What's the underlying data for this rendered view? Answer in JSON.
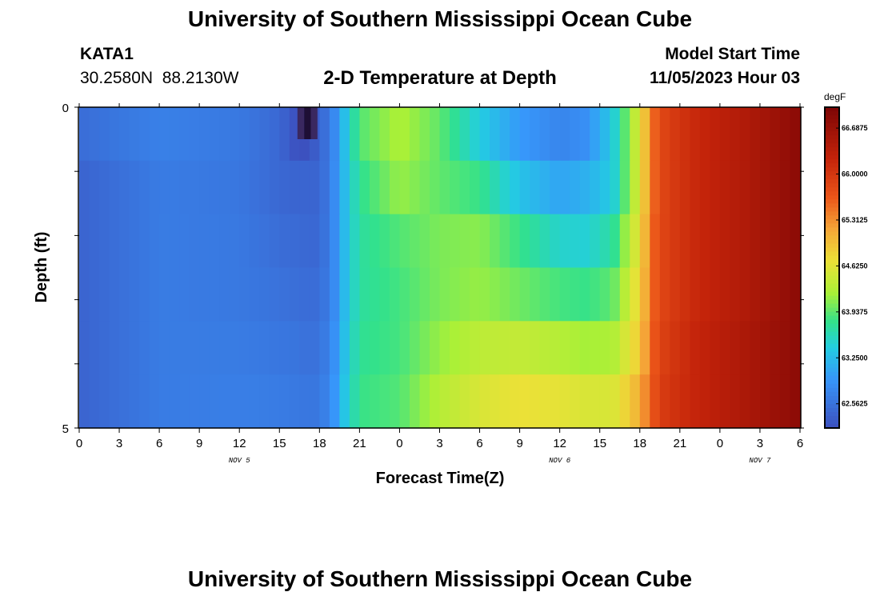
{
  "header": {
    "title": "University of Southern Mississippi Ocean Cube",
    "station_id": "KATA1",
    "station_coords": "30.2580N  88.2130W",
    "chart_title": "2-D Temperature at Depth",
    "model_start_label": "Model Start Time",
    "model_start_value": "11/05/2023 Hour 03"
  },
  "footer": {
    "title": "University of Southern Mississippi Ocean Cube"
  },
  "chart_data": {
    "type": "heatmap",
    "title": "2-D Temperature at Depth",
    "xlabel": "Forecast Time(Z)",
    "ylabel": "Depth (ft)",
    "x_ticks": [
      "0",
      "3",
      "6",
      "9",
      "12",
      "15",
      "18",
      "21",
      "0",
      "3",
      "6",
      "9",
      "12",
      "15",
      "18",
      "21",
      "0",
      "3",
      "6"
    ],
    "x_day_labels": [
      {
        "label": "NOV 5",
        "tick_index": 4
      },
      {
        "label": "NOV 6",
        "tick_index": 12
      },
      {
        "label": "NOV 7",
        "tick_index": 17
      }
    ],
    "x_range_hours": [
      0,
      54
    ],
    "y_ticks": [
      "0",
      "5"
    ],
    "y_range": [
      0,
      5
    ],
    "depths_ft": [
      0,
      1,
      2,
      3,
      4,
      5
    ],
    "colorbar": {
      "units": "degF",
      "labels": [
        "66.6875",
        "66.0000",
        "65.3125",
        "64.6250",
        "63.9375",
        "63.2500",
        "62.5625"
      ],
      "min": 62.2,
      "max": 67.0
    },
    "time_hours": [
      0,
      6,
      12,
      15,
      16,
      17,
      18,
      19,
      20,
      21,
      24,
      27,
      30,
      33,
      36,
      38,
      40,
      42,
      43,
      44,
      46,
      50,
      54
    ],
    "values_degF": [
      [
        62.5,
        62.7,
        62.62,
        62.45,
        62.25,
        62.2,
        62.4,
        62.72,
        63.35,
        63.9,
        64.25,
        63.95,
        63.4,
        62.95,
        62.75,
        62.85,
        63.4,
        64.6,
        65.55,
        65.9,
        66.15,
        66.45,
        66.85
      ],
      [
        62.4,
        62.65,
        62.6,
        62.45,
        62.42,
        62.42,
        62.42,
        62.75,
        63.3,
        63.75,
        64.15,
        63.95,
        63.8,
        63.3,
        63.05,
        63.15,
        63.4,
        64.6,
        65.55,
        65.9,
        66.15,
        66.45,
        66.85
      ],
      [
        62.4,
        62.65,
        62.62,
        62.5,
        62.48,
        62.45,
        62.45,
        62.75,
        63.3,
        63.7,
        63.9,
        64.05,
        64.1,
        63.8,
        63.5,
        63.45,
        63.7,
        64.7,
        65.6,
        65.9,
        66.15,
        66.45,
        66.85
      ],
      [
        62.4,
        62.65,
        62.62,
        62.55,
        62.52,
        62.5,
        62.5,
        62.75,
        63.3,
        63.7,
        63.85,
        64.05,
        64.15,
        64.0,
        63.85,
        63.8,
        63.95,
        64.8,
        65.6,
        65.9,
        66.15,
        66.45,
        66.85
      ],
      [
        62.4,
        62.65,
        62.65,
        62.6,
        62.58,
        62.55,
        62.55,
        62.8,
        63.35,
        63.75,
        63.85,
        64.15,
        64.35,
        64.4,
        64.3,
        64.2,
        64.25,
        64.9,
        65.65,
        65.95,
        66.2,
        66.5,
        66.85
      ],
      [
        62.4,
        62.65,
        62.68,
        62.65,
        62.62,
        62.6,
        62.6,
        62.85,
        63.4,
        63.8,
        63.9,
        64.3,
        64.55,
        64.7,
        64.65,
        64.55,
        64.55,
        65.1,
        65.7,
        66.0,
        66.2,
        66.5,
        66.85
      ]
    ]
  }
}
